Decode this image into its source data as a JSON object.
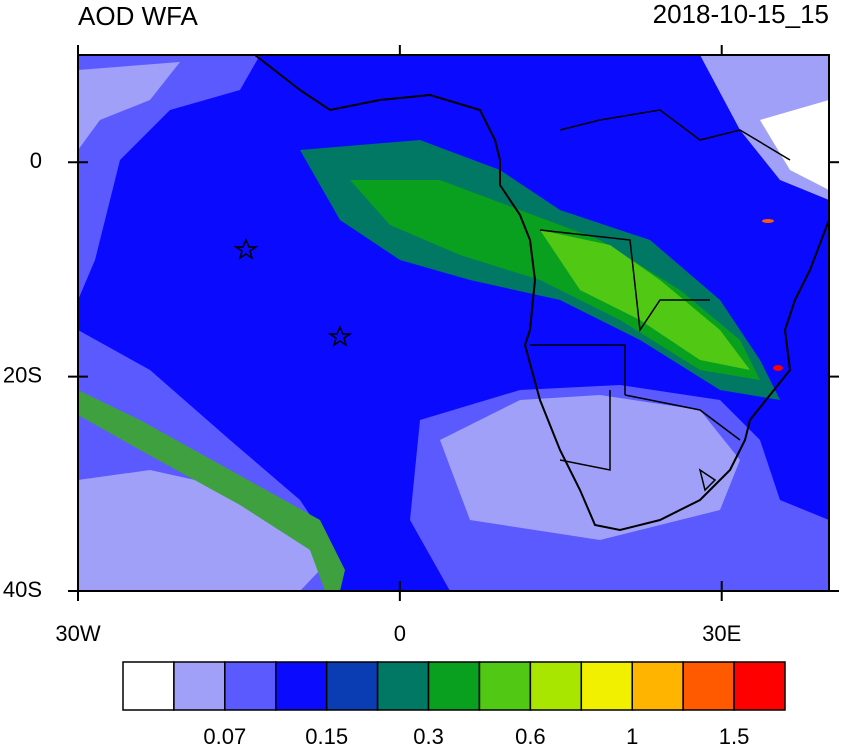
{
  "header": {
    "title": "AOD WFA",
    "date": "2018-10-15_15"
  },
  "map": {
    "xlim": [
      -30,
      40
    ],
    "ylim": [
      -40,
      10
    ],
    "xticks": [
      {
        "value": -30,
        "label": "30W"
      },
      0,
      {
        "value": 30,
        "label": "30E"
      }
    ],
    "yticks": [
      0,
      {
        "value": -20,
        "label": "20S"
      },
      {
        "value": -40,
        "label": "40S"
      }
    ]
  },
  "colorbar": {
    "colors": [
      "#ffffff",
      "#a0a0f8",
      "#5a5aff",
      "#0a0aff",
      "#0a3cb4",
      "#007864",
      "#08a01e",
      "#50c814",
      "#a8e600",
      "#f0f000",
      "#ffb400",
      "#ff5a00",
      "#ff0000"
    ],
    "labels": [
      0.07,
      0.15,
      0.3,
      0.6,
      1,
      1.5
    ]
  }
}
